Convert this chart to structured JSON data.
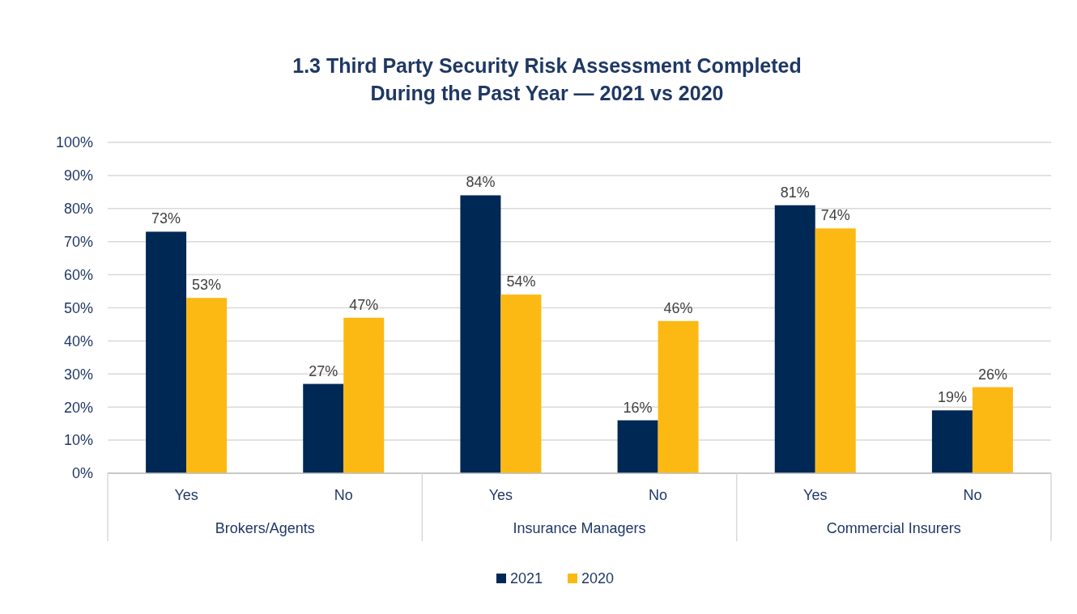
{
  "chart_data": {
    "type": "bar",
    "title": "1.3 Third Party Security Risk Assessment Completed\nDuring the Past Year — 2021 vs 2020",
    "categories": [
      "Yes",
      "No",
      "Yes",
      "No",
      "Yes",
      "No"
    ],
    "series": [
      {
        "name": "2021",
        "color": "#002855",
        "values": [
          73,
          27,
          84,
          16,
          81,
          19
        ],
        "value_labels": [
          "73%",
          "27%",
          "84%",
          "16%",
          "81%",
          "19%"
        ]
      },
      {
        "name": "2020",
        "color": "#fdb913",
        "values": [
          53,
          47,
          54,
          46,
          74,
          26
        ],
        "value_labels": [
          "53%",
          "47%",
          "54%",
          "46%",
          "74%",
          "26%"
        ]
      }
    ],
    "annotations": [
      "Brokers/Agents",
      "Insurance Managers",
      "Commercial Insurers"
    ],
    "ylim": [
      0,
      100
    ],
    "yticks": [
      {
        "value": 0,
        "label": "0%"
      },
      {
        "value": 10,
        "label": "10%"
      },
      {
        "value": 20,
        "label": "20%"
      },
      {
        "value": 30,
        "label": "30%"
      },
      {
        "value": 40,
        "label": "40%"
      },
      {
        "value": 50,
        "label": "50%"
      },
      {
        "value": 60,
        "label": "60%"
      },
      {
        "value": 70,
        "label": "70%"
      },
      {
        "value": 80,
        "label": "80%"
      },
      {
        "value": 90,
        "label": "90%"
      },
      {
        "value": 100,
        "label": "100%"
      }
    ],
    "grid": "y",
    "legend": "bottom"
  }
}
